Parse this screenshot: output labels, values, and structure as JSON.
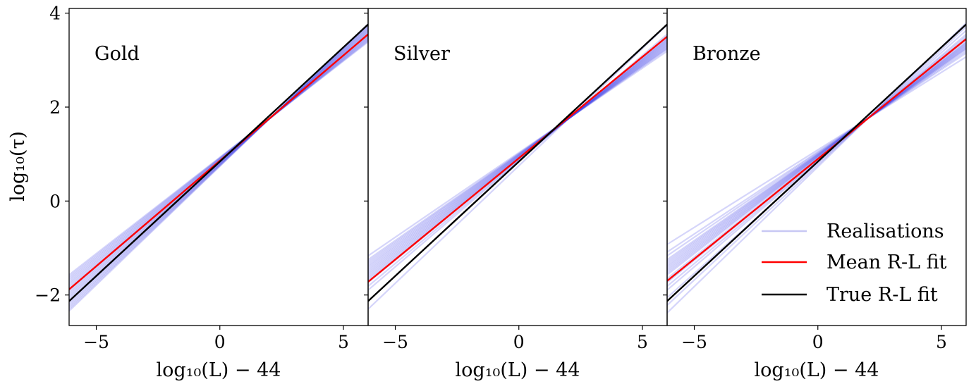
{
  "chart_data": {
    "type": "line",
    "shared": {
      "xlabel": "log₁₀(L) − 44",
      "ylabel": "log₁₀(τ)",
      "xlim": [
        -6.1,
        6.0
      ],
      "ylim": [
        -2.65,
        4.1
      ],
      "xticks": [
        -5,
        0,
        5
      ],
      "xtick_labels": [
        "−5",
        "0",
        "5"
      ],
      "yticks": [
        -2,
        0,
        2,
        4
      ],
      "ytick_labels": [
        "−2",
        "0",
        "2",
        "4"
      ],
      "grid": false
    },
    "legend": {
      "placement": "lower-right of right panel",
      "entries": [
        {
          "label": "Realisations",
          "color": "#c8c8f4"
        },
        {
          "label": "Mean R-L fit",
          "color": "#ff0000"
        },
        {
          "label": "True R-L fit",
          "color": "#000000"
        }
      ]
    },
    "colors": {
      "realisations": "#4040e8",
      "mean": "#ff0000",
      "true": "#000000"
    },
    "panels": [
      {
        "label": "Gold",
        "pivot_x": 2.0,
        "pivot_y": 1.75,
        "true_fit": {
          "x": [
            -6.1,
            6.0
          ],
          "y": [
            -2.13,
            3.76
          ]
        },
        "mean_fit": {
          "x": [
            -6.1,
            6.0
          ],
          "y": [
            -1.88,
            3.55
          ]
        },
        "realisation_slopes": [
          0.41,
          0.415,
          0.42,
          0.425,
          0.43,
          0.435,
          0.44,
          0.445,
          0.45,
          0.455,
          0.46,
          0.465,
          0.47,
          0.475,
          0.48,
          0.485,
          0.49,
          0.495,
          0.5,
          0.505
        ]
      },
      {
        "label": "Silver",
        "pivot_x": 2.0,
        "pivot_y": 1.75,
        "true_fit": {
          "x": [
            -6.1,
            6.0
          ],
          "y": [
            -2.13,
            3.76
          ]
        },
        "mean_fit": {
          "x": [
            -6.1,
            6.0
          ],
          "y": [
            -1.72,
            3.5
          ]
        },
        "realisation_slopes": [
          0.36,
          0.37,
          0.375,
          0.38,
          0.385,
          0.39,
          0.395,
          0.4,
          0.405,
          0.41,
          0.415,
          0.42,
          0.425,
          0.43,
          0.44,
          0.45,
          0.5
        ]
      },
      {
        "label": "Bronze",
        "pivot_x": 2.0,
        "pivot_y": 1.75,
        "true_fit": {
          "x": [
            -6.1,
            6.0
          ],
          "y": [
            -2.13,
            3.76
          ]
        },
        "mean_fit": {
          "x": [
            -6.1,
            6.0
          ],
          "y": [
            -1.7,
            3.45
          ]
        },
        "realisation_slopes": [
          0.33,
          0.35,
          0.36,
          0.37,
          0.375,
          0.38,
          0.385,
          0.39,
          0.395,
          0.4,
          0.405,
          0.41,
          0.42,
          0.43,
          0.44,
          0.45,
          0.47,
          0.49,
          0.51
        ]
      }
    ]
  }
}
